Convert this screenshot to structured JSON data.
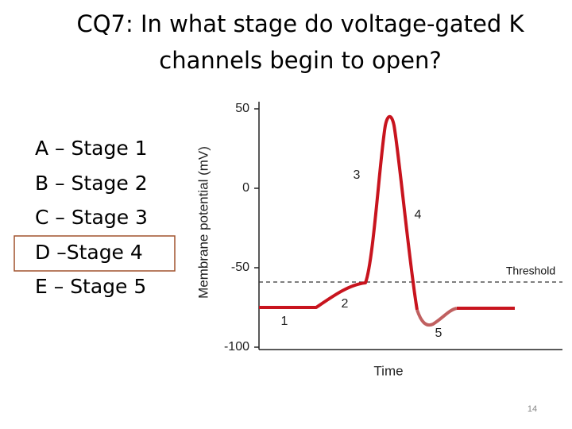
{
  "title_lines": [
    "CQ7: In what stage do voltage-gated K",
    "channels begin to open?"
  ],
  "options": [
    "A – Stage 1",
    "B – Stage 2",
    "C – Stage 3",
    "D –Stage 4",
    "E – Stage 5"
  ],
  "page_number": "14",
  "chart_data": {
    "type": "line",
    "ylabel": "Membrane potential (mV)",
    "xlabel": "Time",
    "ylim": [
      -100,
      50
    ],
    "yticks": [
      50,
      0,
      -50,
      -100
    ],
    "threshold_label": "Threshold",
    "stage_labels": [
      "1",
      "2",
      "3",
      "4",
      "5"
    ]
  }
}
